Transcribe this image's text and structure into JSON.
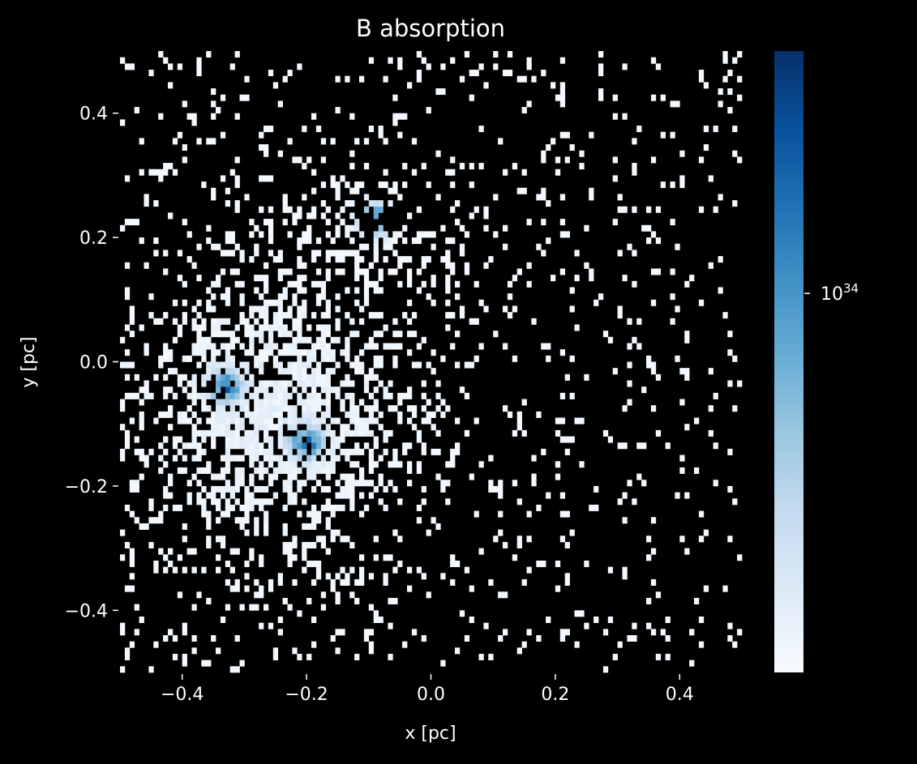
{
  "chart_data": {
    "type": "heatmap",
    "title": "B absorption",
    "xlabel": "x [pc]",
    "ylabel": "y [pc]",
    "xlim": [
      -0.5,
      0.5
    ],
    "ylim": [
      -0.5,
      0.5
    ],
    "x_ticks": [
      -0.4,
      -0.2,
      0.0,
      0.2,
      0.4
    ],
    "y_ticks": [
      -0.4,
      -0.2,
      0.0,
      0.2,
      0.4
    ],
    "x_tick_labels": [
      "−0.4",
      "−0.2",
      "0.0",
      "0.2",
      "0.4"
    ],
    "y_tick_labels": [
      "−0.4",
      "−0.2",
      "0.0",
      "0.2",
      "0.4"
    ],
    "bins": [
      130,
      100
    ],
    "background": "#000000",
    "grid": false,
    "colormap": "Blues",
    "colormap_stops": [
      "#f7fbff",
      "#deebf7",
      "#c6dbef",
      "#9ecae1",
      "#6baed6",
      "#4292c6",
      "#2171b5",
      "#08519c",
      "#08306b"
    ],
    "colorbar": {
      "scale": "log",
      "tick_base": "10",
      "tick_exponent": "34",
      "tick_position": 0.61
    },
    "peaks": [
      {
        "x": -0.33,
        "y": -0.04
      },
      {
        "x": -0.2,
        "y": -0.13
      },
      {
        "x": -0.09,
        "y": 0.23
      }
    ]
  }
}
